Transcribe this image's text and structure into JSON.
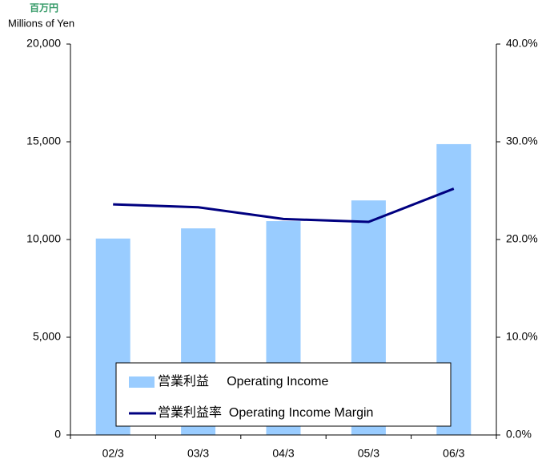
{
  "chart_data": {
    "type": "bar_line",
    "y_unit_label": "百万円",
    "y_axis_label": "Millions of Yen",
    "categories": [
      "02/3",
      "03/3",
      "04/3",
      "05/3",
      "06/3"
    ],
    "series": [
      {
        "name": "営業利益     Operating Income",
        "type": "bar",
        "color": "#99ccff",
        "values": [
          10050,
          10570,
          10940,
          12000,
          14880
        ]
      },
      {
        "name": "営業利益率  Operating Income Margin",
        "type": "line",
        "axis": "y2",
        "color": "#000080",
        "values": [
          23.6,
          23.3,
          22.1,
          21.8,
          25.2
        ]
      }
    ],
    "ylim": [
      0,
      20000
    ],
    "yticks": [
      0,
      {
        "value": 5000,
        "label": "5,000"
      },
      {
        "value": 10000,
        "label": "10,000"
      },
      {
        "value": 15000,
        "label": "15,000"
      },
      {
        "value": 20000,
        "label": "20,000"
      }
    ],
    "y2lim": [
      0,
      40
    ],
    "y2ticks": [
      {
        "value": 0,
        "label": "0.0%"
      },
      {
        "value": 10,
        "label": "10.0%"
      },
      {
        "value": 20,
        "label": "20.0%"
      },
      {
        "value": 30,
        "label": "30.0%"
      },
      {
        "value": 40,
        "label": "40.0%"
      }
    ],
    "grid": false,
    "legend": "bottom"
  }
}
